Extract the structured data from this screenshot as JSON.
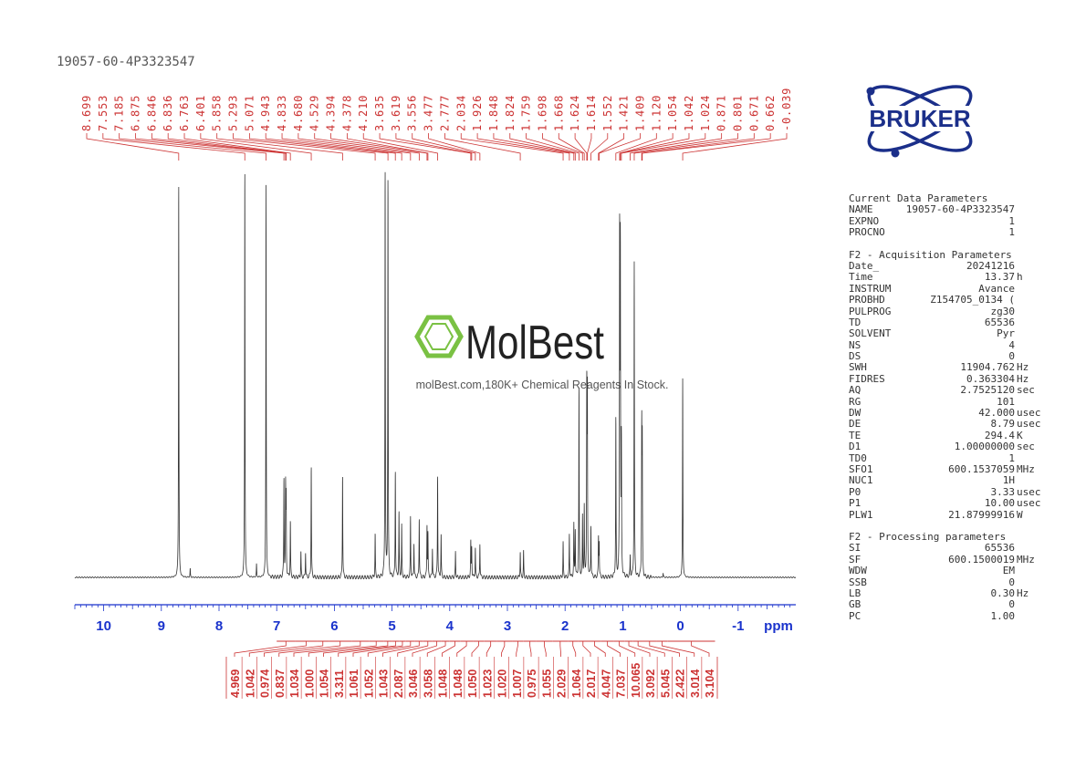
{
  "sample_title": "19057-60-4P3323547",
  "brand": {
    "name": "BRUKER",
    "color": "#1b2f8a"
  },
  "watermark": {
    "name": "MolBest",
    "tagline": "molBest.com,180K+ Chemical Reagents In Stock.",
    "color": "#7ac143"
  },
  "colors": {
    "spectrum": "#333333",
    "peak_labels": "#cc3333",
    "axis": "#1a33cc"
  },
  "chart_data": {
    "type": "line",
    "xlabel": "ppm",
    "xlim": [
      10.5,
      -2.0
    ],
    "x_reversed": true,
    "x_ticks": [
      10,
      9,
      8,
      7,
      6,
      5,
      4,
      3,
      2,
      1,
      0,
      -1
    ],
    "peak_labels": [
      "8.699",
      "7.553",
      "7.185",
      "6.875",
      "6.846",
      "6.836",
      "6.763",
      "6.401",
      "5.858",
      "5.293",
      "5.071",
      "4.943",
      "4.833",
      "4.680",
      "4.529",
      "4.394",
      "4.378",
      "4.210",
      "3.635",
      "3.619",
      "3.556",
      "3.477",
      "2.777",
      "2.034",
      "1.926",
      "1.848",
      "1.824",
      "1.759",
      "1.698",
      "1.668",
      "1.624",
      "1.614",
      "1.552",
      "1.421",
      "1.409",
      "1.120",
      "1.054",
      "1.042",
      "1.024",
      "0.871",
      "0.801",
      "0.671",
      "0.662",
      "-0.039"
    ],
    "integrals": [
      {
        "from": 7.0,
        "to": 6.68,
        "value": "4.969"
      },
      {
        "from": 6.68,
        "to": 6.3,
        "value": "1.042"
      },
      {
        "from": 6.3,
        "to": 6.1,
        "value": "0.974"
      },
      {
        "from": 6.1,
        "to": 5.7,
        "value": "0.837"
      },
      {
        "from": 5.7,
        "to": 5.4,
        "value": "1.034"
      },
      {
        "from": 5.4,
        "to": 5.15,
        "value": "1.000"
      },
      {
        "from": 5.15,
        "to": 5.0,
        "value": "1.054"
      },
      {
        "from": 5.0,
        "to": 4.88,
        "value": "3.311"
      },
      {
        "from": 4.88,
        "to": 4.76,
        "value": "1.061"
      },
      {
        "from": 4.76,
        "to": 4.6,
        "value": "1.052"
      },
      {
        "from": 4.6,
        "to": 4.46,
        "value": "1.043"
      },
      {
        "from": 4.46,
        "to": 4.3,
        "value": "2.087"
      },
      {
        "from": 4.3,
        "to": 4.15,
        "value": "3.046"
      },
      {
        "from": 4.15,
        "to": 4.0,
        "value": "3.058"
      },
      {
        "from": 4.0,
        "to": 3.82,
        "value": "1.048"
      },
      {
        "from": 3.82,
        "to": 3.6,
        "value": "1.048"
      },
      {
        "from": 3.6,
        "to": 3.4,
        "value": "1.050"
      },
      {
        "from": 3.4,
        "to": 3.18,
        "value": "1.023"
      },
      {
        "from": 3.18,
        "to": 2.92,
        "value": "1.020"
      },
      {
        "from": 2.92,
        "to": 2.72,
        "value": "1.007"
      },
      {
        "from": 2.72,
        "to": 2.5,
        "value": "0.975"
      },
      {
        "from": 2.5,
        "to": 2.22,
        "value": "1.055"
      },
      {
        "from": 2.22,
        "to": 1.95,
        "value": "2.029"
      },
      {
        "from": 1.95,
        "to": 1.78,
        "value": "1.064"
      },
      {
        "from": 1.78,
        "to": 1.6,
        "value": "2.017"
      },
      {
        "from": 1.6,
        "to": 1.38,
        "value": "4.047"
      },
      {
        "from": 1.38,
        "to": 1.15,
        "value": "7.037"
      },
      {
        "from": 1.15,
        "to": 0.97,
        "value": "10.065"
      },
      {
        "from": 0.97,
        "to": 0.82,
        "value": "3.092"
      },
      {
        "from": 0.82,
        "to": 0.65,
        "value": "5.045"
      },
      {
        "from": 0.65,
        "to": 0.42,
        "value": "2.422"
      },
      {
        "from": 0.42,
        "to": 0.22,
        "value": "3.014"
      },
      {
        "from": 0.22,
        "to": -0.6,
        "value": "3.104"
      }
    ],
    "peaks": [
      {
        "ppm": 8.699,
        "height": 0.92
      },
      {
        "ppm": 8.5,
        "height": 0.02
      },
      {
        "ppm": 7.553,
        "height": 0.95
      },
      {
        "ppm": 7.35,
        "height": 0.03
      },
      {
        "ppm": 7.185,
        "height": 0.91
      },
      {
        "ppm": 6.875,
        "height": 0.23
      },
      {
        "ppm": 6.846,
        "height": 0.2
      },
      {
        "ppm": 6.836,
        "height": 0.18
      },
      {
        "ppm": 6.763,
        "height": 0.13
      },
      {
        "ppm": 6.58,
        "height": 0.06
      },
      {
        "ppm": 6.5,
        "height": 0.06
      },
      {
        "ppm": 6.401,
        "height": 0.26
      },
      {
        "ppm": 5.858,
        "height": 0.24
      },
      {
        "ppm": 5.293,
        "height": 0.1
      },
      {
        "ppm": 5.12,
        "height": 0.95
      },
      {
        "ppm": 5.071,
        "height": 0.93
      },
      {
        "ppm": 4.943,
        "height": 0.25
      },
      {
        "ppm": 4.88,
        "height": 0.15
      },
      {
        "ppm": 4.833,
        "height": 0.12
      },
      {
        "ppm": 4.68,
        "height": 0.14
      },
      {
        "ppm": 4.62,
        "height": 0.08
      },
      {
        "ppm": 4.529,
        "height": 0.14
      },
      {
        "ppm": 4.394,
        "height": 0.12
      },
      {
        "ppm": 4.378,
        "height": 0.1
      },
      {
        "ppm": 4.3,
        "height": 0.07
      },
      {
        "ppm": 4.21,
        "height": 0.24
      },
      {
        "ppm": 4.15,
        "height": 0.1
      },
      {
        "ppm": 3.9,
        "height": 0.06
      },
      {
        "ppm": 3.635,
        "height": 0.08
      },
      {
        "ppm": 3.619,
        "height": 0.07
      },
      {
        "ppm": 3.556,
        "height": 0.07
      },
      {
        "ppm": 3.477,
        "height": 0.08
      },
      {
        "ppm": 2.777,
        "height": 0.06
      },
      {
        "ppm": 2.72,
        "height": 0.06
      },
      {
        "ppm": 2.034,
        "height": 0.08
      },
      {
        "ppm": 1.926,
        "height": 0.1
      },
      {
        "ppm": 1.848,
        "height": 0.12
      },
      {
        "ppm": 1.824,
        "height": 0.11
      },
      {
        "ppm": 1.759,
        "height": 0.44
      },
      {
        "ppm": 1.698,
        "height": 0.14
      },
      {
        "ppm": 1.668,
        "height": 0.16
      },
      {
        "ppm": 1.624,
        "height": 0.43
      },
      {
        "ppm": 1.614,
        "height": 0.4
      },
      {
        "ppm": 1.552,
        "height": 0.12
      },
      {
        "ppm": 1.421,
        "height": 0.09
      },
      {
        "ppm": 1.409,
        "height": 0.08
      },
      {
        "ppm": 1.12,
        "height": 0.37
      },
      {
        "ppm": 1.054,
        "height": 0.78
      },
      {
        "ppm": 1.042,
        "height": 0.74
      },
      {
        "ppm": 1.024,
        "height": 0.3
      },
      {
        "ppm": 0.871,
        "height": 0.05
      },
      {
        "ppm": 0.801,
        "height": 0.73
      },
      {
        "ppm": 0.671,
        "height": 0.34
      },
      {
        "ppm": 0.662,
        "height": 0.3
      },
      {
        "ppm": 0.3,
        "height": 0.01
      },
      {
        "ppm": -0.039,
        "height": 0.46
      }
    ]
  },
  "params": {
    "sections": [
      {
        "title": "Current Data Parameters",
        "rows": [
          {
            "key": "NAME",
            "value": "19057-60-4P3323547",
            "unit": ""
          },
          {
            "key": "EXPNO",
            "value": "1",
            "unit": ""
          },
          {
            "key": "PROCNO",
            "value": "1",
            "unit": ""
          }
        ]
      },
      {
        "title": "F2 - Acquisition Parameters",
        "rows": [
          {
            "key": "Date_",
            "value": "20241216",
            "unit": ""
          },
          {
            "key": "Time",
            "value": "13.37",
            "unit": "h"
          },
          {
            "key": "INSTRUM",
            "value": "Avance",
            "unit": ""
          },
          {
            "key": "PROBHD",
            "value": "Z154705_0134 (",
            "unit": ""
          },
          {
            "key": "PULPROG",
            "value": "zg30",
            "unit": ""
          },
          {
            "key": "TD",
            "value": "65536",
            "unit": ""
          },
          {
            "key": "SOLVENT",
            "value": "Pyr",
            "unit": ""
          },
          {
            "key": "NS",
            "value": "4",
            "unit": ""
          },
          {
            "key": "DS",
            "value": "0",
            "unit": ""
          },
          {
            "key": "SWH",
            "value": "11904.762",
            "unit": "Hz"
          },
          {
            "key": "FIDRES",
            "value": "0.363304",
            "unit": "Hz"
          },
          {
            "key": "AQ",
            "value": "2.7525120",
            "unit": "sec"
          },
          {
            "key": "RG",
            "value": "101",
            "unit": ""
          },
          {
            "key": "DW",
            "value": "42.000",
            "unit": "usec"
          },
          {
            "key": "DE",
            "value": "8.79",
            "unit": "usec"
          },
          {
            "key": "TE",
            "value": "294.4",
            "unit": "K"
          },
          {
            "key": "D1",
            "value": "1.00000000",
            "unit": "sec"
          },
          {
            "key": "TD0",
            "value": "1",
            "unit": ""
          },
          {
            "key": "SFO1",
            "value": "600.1537059",
            "unit": "MHz"
          },
          {
            "key": "NUC1",
            "value": "1H",
            "unit": ""
          },
          {
            "key": "P0",
            "value": "3.33",
            "unit": "usec"
          },
          {
            "key": "P1",
            "value": "10.00",
            "unit": "usec"
          },
          {
            "key": "PLW1",
            "value": "21.87999916",
            "unit": "W"
          }
        ]
      },
      {
        "title": "F2 - Processing parameters",
        "rows": [
          {
            "key": "SI",
            "value": "65536",
            "unit": ""
          },
          {
            "key": "SF",
            "value": "600.1500019",
            "unit": "MHz"
          },
          {
            "key": "WDW",
            "value": "EM",
            "unit": ""
          },
          {
            "key": "SSB",
            "value": "0",
            "unit": ""
          },
          {
            "key": "LB",
            "value": "0.30",
            "unit": "Hz"
          },
          {
            "key": "GB",
            "value": "0",
            "unit": ""
          },
          {
            "key": "PC",
            "value": "1.00",
            "unit": ""
          }
        ]
      }
    ]
  }
}
